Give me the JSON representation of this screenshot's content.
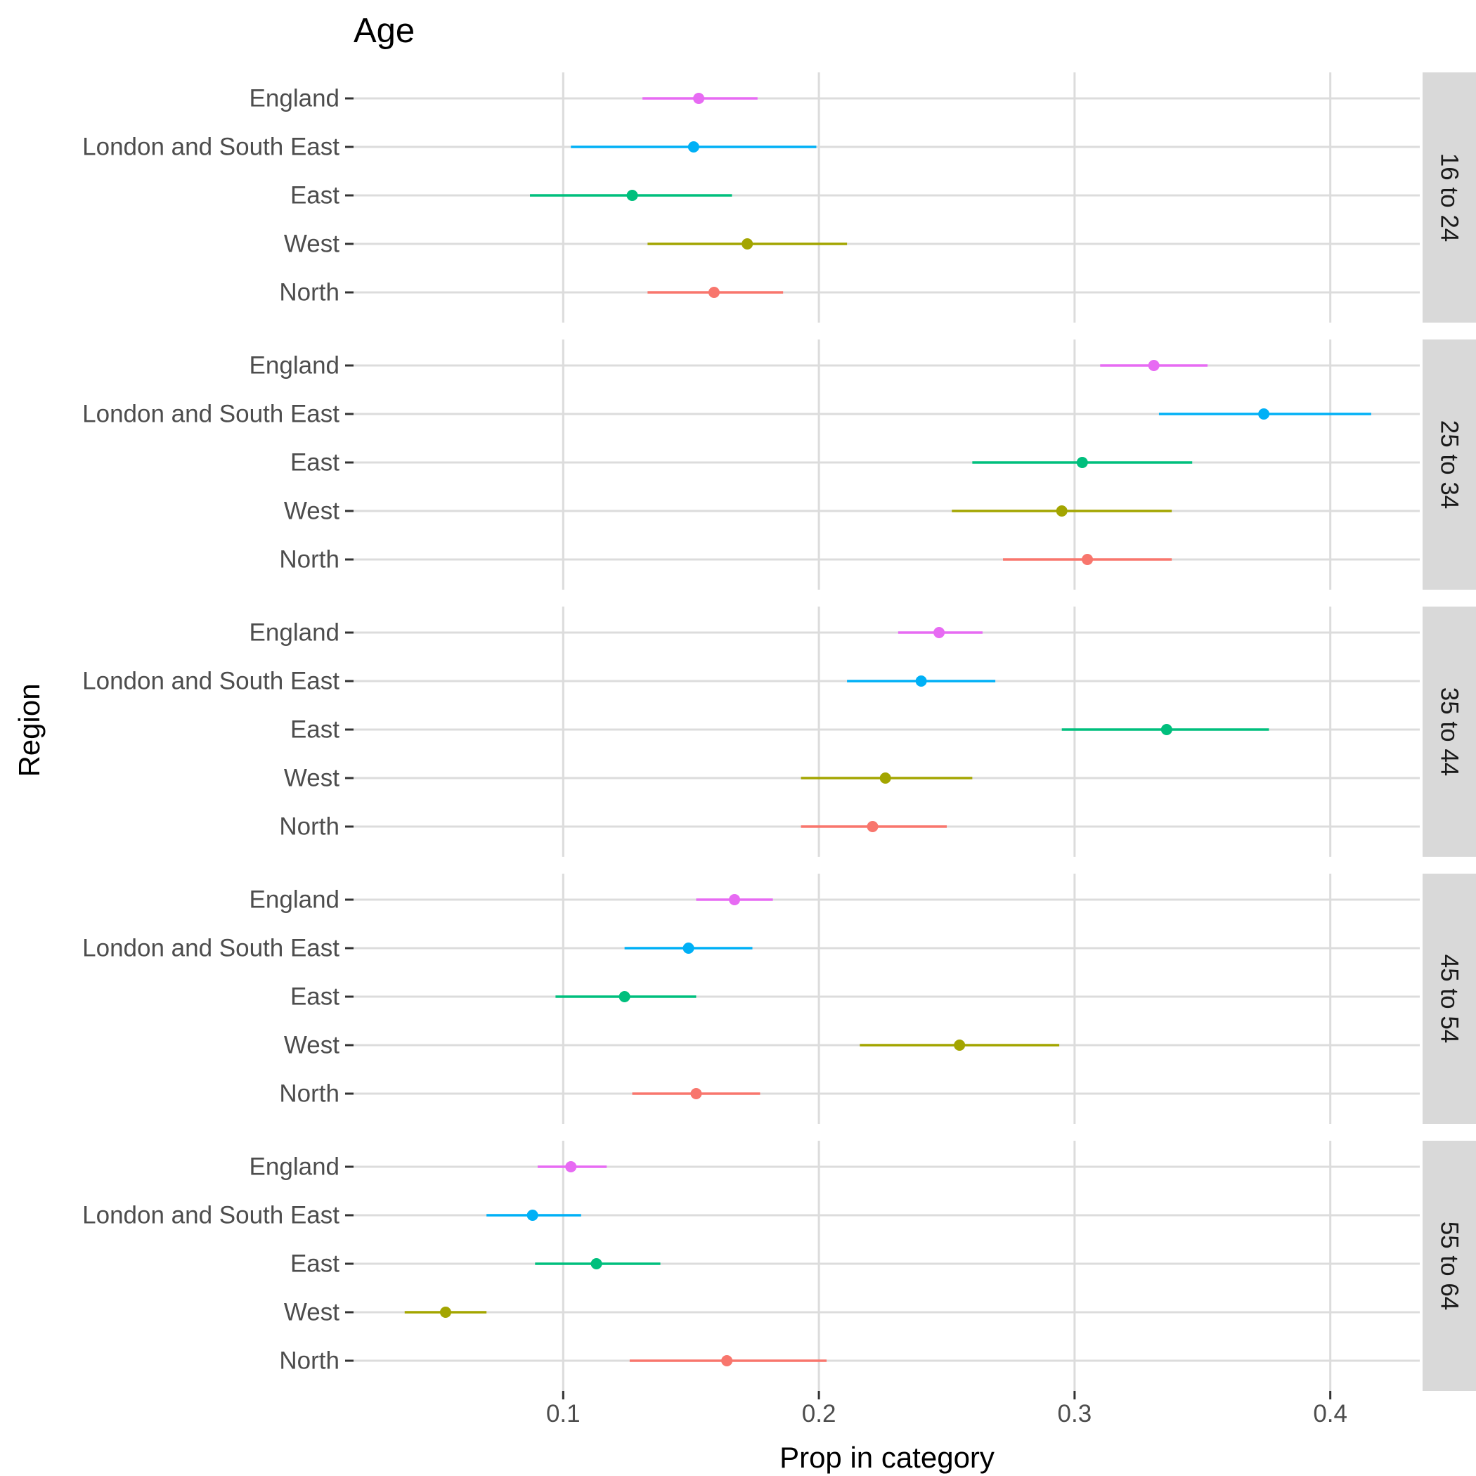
{
  "chart_data": {
    "type": "pointrange",
    "title": "Age",
    "xlabel": "Prop in category",
    "ylabel": "Region",
    "xlim": [
      0.018,
      0.435
    ],
    "x_ticks": [
      0.1,
      0.2,
      0.3,
      0.4
    ],
    "x_tick_labels": [
      "0.1",
      "0.2",
      "0.3",
      "0.4"
    ],
    "grid": true,
    "legend": "none",
    "categories": [
      "England",
      "London and South East",
      "East",
      "West",
      "North"
    ],
    "colors": {
      "England": "#e76bf3",
      "London and South East": "#00b0f6",
      "East": "#00bf7d",
      "West": "#a3a500",
      "North": "#f8766d"
    },
    "facets": [
      {
        "label": "16 to 24",
        "points": [
          {
            "region": "England",
            "value": 0.153,
            "low": 0.131,
            "high": 0.176
          },
          {
            "region": "London and South East",
            "value": 0.151,
            "low": 0.103,
            "high": 0.199
          },
          {
            "region": "East",
            "value": 0.127,
            "low": 0.087,
            "high": 0.166
          },
          {
            "region": "West",
            "value": 0.172,
            "low": 0.133,
            "high": 0.211
          },
          {
            "region": "North",
            "value": 0.159,
            "low": 0.133,
            "high": 0.186
          }
        ]
      },
      {
        "label": "25 to 34",
        "points": [
          {
            "region": "England",
            "value": 0.331,
            "low": 0.31,
            "high": 0.352
          },
          {
            "region": "London and South East",
            "value": 0.374,
            "low": 0.333,
            "high": 0.416
          },
          {
            "region": "East",
            "value": 0.303,
            "low": 0.26,
            "high": 0.346
          },
          {
            "region": "West",
            "value": 0.295,
            "low": 0.252,
            "high": 0.338
          },
          {
            "region": "North",
            "value": 0.305,
            "low": 0.272,
            "high": 0.338
          }
        ]
      },
      {
        "label": "35 to 44",
        "points": [
          {
            "region": "England",
            "value": 0.247,
            "low": 0.231,
            "high": 0.264
          },
          {
            "region": "London and South East",
            "value": 0.24,
            "low": 0.211,
            "high": 0.269
          },
          {
            "region": "East",
            "value": 0.336,
            "low": 0.295,
            "high": 0.376
          },
          {
            "region": "West",
            "value": 0.226,
            "low": 0.193,
            "high": 0.26
          },
          {
            "region": "North",
            "value": 0.221,
            "low": 0.193,
            "high": 0.25
          }
        ]
      },
      {
        "label": "45 to 54",
        "points": [
          {
            "region": "England",
            "value": 0.167,
            "low": 0.152,
            "high": 0.182
          },
          {
            "region": "London and South East",
            "value": 0.149,
            "low": 0.124,
            "high": 0.174
          },
          {
            "region": "East",
            "value": 0.124,
            "low": 0.097,
            "high": 0.152
          },
          {
            "region": "West",
            "value": 0.255,
            "low": 0.216,
            "high": 0.294
          },
          {
            "region": "North",
            "value": 0.152,
            "low": 0.127,
            "high": 0.177
          }
        ]
      },
      {
        "label": "55 to 64",
        "points": [
          {
            "region": "England",
            "value": 0.103,
            "low": 0.09,
            "high": 0.117
          },
          {
            "region": "London and South East",
            "value": 0.088,
            "low": 0.07,
            "high": 0.107
          },
          {
            "region": "East",
            "value": 0.113,
            "low": 0.089,
            "high": 0.138
          },
          {
            "region": "West",
            "value": 0.054,
            "low": 0.038,
            "high": 0.07
          },
          {
            "region": "North",
            "value": 0.164,
            "low": 0.126,
            "high": 0.203
          }
        ]
      }
    ]
  }
}
